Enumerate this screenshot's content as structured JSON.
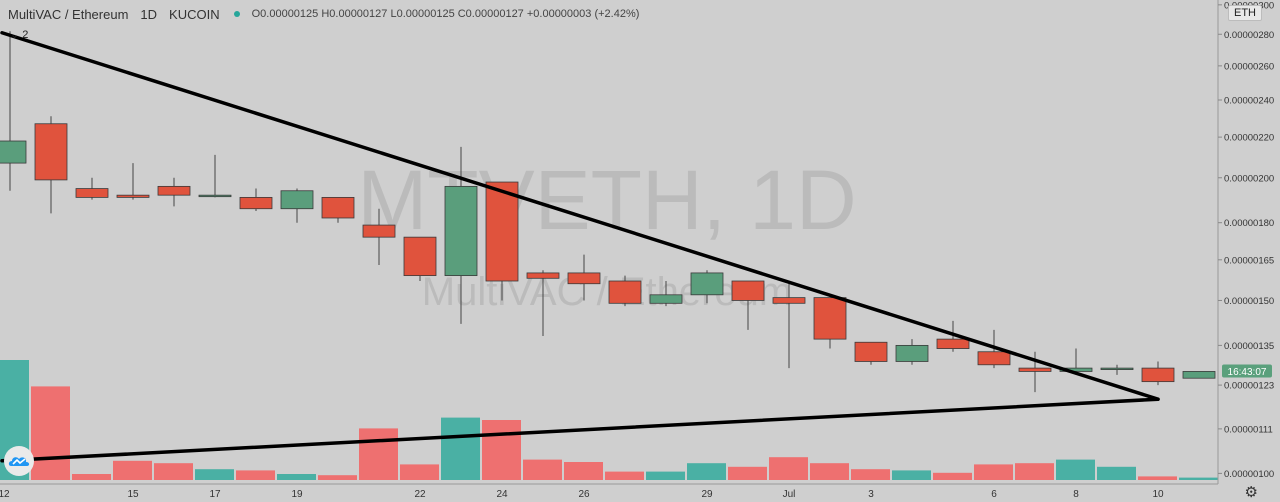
{
  "header": {
    "title": "MultiVAC / Ethereum",
    "interval": "1D",
    "exchange": "KUCOIN",
    "ohlc": "O0.00000125 H0.00000127 L0.00000125 C0.00000127 +0.00000003 (+2.42%)",
    "indicator_count": "2",
    "currency_badge": "ETH"
  },
  "watermark": {
    "symbol": "MTVETH, 1D",
    "name": "MultiVAC / Ethereum"
  },
  "price_label": "16:43:07",
  "colors": {
    "up": "#5a9e7c",
    "down": "#e0533d",
    "up_volume": "#4ab0a4",
    "down_volume": "#ee7070",
    "background": "#cfcfcf",
    "trendline": "#000000",
    "price_tag": "#5aa07c"
  },
  "icons": {
    "settings": "gear-icon",
    "collapse": "chevron-down-icon",
    "brand": "logo-icon"
  },
  "chart_data": {
    "type": "candlestick",
    "title": "",
    "y_scale": "log",
    "x_tick_labels": [
      "12",
      "15",
      "17",
      "19",
      "22",
      "24",
      "26",
      "29",
      "Jul",
      "3",
      "6",
      "8",
      "10"
    ],
    "y_tick_labels": [
      "0.00000300",
      "0.00000280",
      "0.00000260",
      "0.00000240",
      "0.00000220",
      "0.00000200",
      "0.00000180",
      "0.00000165",
      "0.00000150",
      "0.00000135",
      "0.00000123",
      "0.00000111",
      "0.00000100"
    ],
    "ylim": [
      9.8e-07,
      3.02e-06
    ],
    "candles": [
      {
        "o": 2.07e-06,
        "h": 2.82e-06,
        "l": 1.94e-06,
        "c": 2.18e-06
      },
      {
        "o": 2.27e-06,
        "h": 2.31e-06,
        "l": 1.84e-06,
        "c": 1.99e-06
      },
      {
        "o": 1.95e-06,
        "h": 2e-06,
        "l": 1.9e-06,
        "c": 1.91e-06
      },
      {
        "o": 1.92e-06,
        "h": 2.07e-06,
        "l": 1.9e-06,
        "c": 1.91e-06
      },
      {
        "o": 1.96e-06,
        "h": 2e-06,
        "l": 1.87e-06,
        "c": 1.92e-06
      },
      {
        "o": 1.92e-06,
        "h": 2.11e-06,
        "l": 1.91e-06,
        "c": 1.92e-06
      },
      {
        "o": 1.91e-06,
        "h": 1.95e-06,
        "l": 1.85e-06,
        "c": 1.86e-06
      },
      {
        "o": 1.86e-06,
        "h": 1.95e-06,
        "l": 1.8e-06,
        "c": 1.94e-06
      },
      {
        "o": 1.91e-06,
        "h": 1.91e-06,
        "l": 1.8e-06,
        "c": 1.82e-06
      },
      {
        "o": 1.79e-06,
        "h": 1.86e-06,
        "l": 1.63e-06,
        "c": 1.74e-06
      },
      {
        "o": 1.74e-06,
        "h": 1.74e-06,
        "l": 1.57e-06,
        "c": 1.59e-06
      },
      {
        "o": 1.59e-06,
        "h": 2.15e-06,
        "l": 1.42e-06,
        "c": 1.96e-06
      },
      {
        "o": 1.98e-06,
        "h": 1.98e-06,
        "l": 1.5e-06,
        "c": 1.57e-06
      },
      {
        "o": 1.6e-06,
        "h": 1.61e-06,
        "l": 1.38e-06,
        "c": 1.58e-06
      },
      {
        "o": 1.6e-06,
        "h": 1.67e-06,
        "l": 1.5e-06,
        "c": 1.56e-06
      },
      {
        "o": 1.57e-06,
        "h": 1.59e-06,
        "l": 1.48e-06,
        "c": 1.49e-06
      },
      {
        "o": 1.49e-06,
        "h": 1.57e-06,
        "l": 1.48e-06,
        "c": 1.52e-06
      },
      {
        "o": 1.52e-06,
        "h": 1.61e-06,
        "l": 1.49e-06,
        "c": 1.6e-06
      },
      {
        "o": 1.57e-06,
        "h": 1.57e-06,
        "l": 1.4e-06,
        "c": 1.5e-06
      },
      {
        "o": 1.51e-06,
        "h": 1.57e-06,
        "l": 1.28e-06,
        "c": 1.49e-06
      },
      {
        "o": 1.51e-06,
        "h": 1.51e-06,
        "l": 1.34e-06,
        "c": 1.37e-06
      },
      {
        "o": 1.36e-06,
        "h": 1.36e-06,
        "l": 1.29e-06,
        "c": 1.3e-06
      },
      {
        "o": 1.3e-06,
        "h": 1.37e-06,
        "l": 1.29e-06,
        "c": 1.35e-06
      },
      {
        "o": 1.37e-06,
        "h": 1.43e-06,
        "l": 1.33e-06,
        "c": 1.34e-06
      },
      {
        "o": 1.33e-06,
        "h": 1.4e-06,
        "l": 1.28e-06,
        "c": 1.29e-06
      },
      {
        "o": 1.28e-06,
        "h": 1.33e-06,
        "l": 1.21e-06,
        "c": 1.27e-06
      },
      {
        "o": 1.27e-06,
        "h": 1.34e-06,
        "l": 1.26e-06,
        "c": 1.28e-06
      },
      {
        "o": 1.28e-06,
        "h": 1.29e-06,
        "l": 1.26e-06,
        "c": 1.28e-06
      },
      {
        "o": 1.28e-06,
        "h": 1.3e-06,
        "l": 1.23e-06,
        "c": 1.24e-06
      },
      {
        "o": 1.25e-06,
        "h": 1.27e-06,
        "l": 1.25e-06,
        "c": 1.27e-06
      }
    ],
    "volume_relative": [
      1.0,
      0.78,
      0.05,
      0.16,
      0.14,
      0.09,
      0.08,
      0.05,
      0.04,
      0.43,
      0.13,
      0.52,
      0.5,
      0.17,
      0.15,
      0.07,
      0.07,
      0.14,
      0.11,
      0.19,
      0.14,
      0.09,
      0.08,
      0.06,
      0.13,
      0.14,
      0.17,
      0.11,
      0.03,
      0.02
    ],
    "trendlines": [
      {
        "from": {
          "candle": 0,
          "price": 2.81e-06
        },
        "to": {
          "candle": 28,
          "price": 1.19e-06
        }
      },
      {
        "from": {
          "candle": 0,
          "price": 1.03e-06
        },
        "to": {
          "candle": 28,
          "price": 1.19e-06
        }
      }
    ],
    "last_price": 1.27e-06,
    "grid": false
  }
}
